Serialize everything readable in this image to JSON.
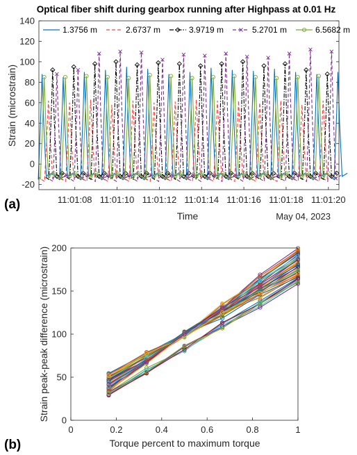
{
  "chart_data": [
    {
      "type": "line",
      "panel_label": "(a)",
      "title": "Optical fiber shift during gearbox running after Highpass at 0.01 Hz",
      "xlabel": "Time",
      "ylabel": "Strain (microstrain)",
      "date_label": "May 04, 2023",
      "x_ticks": [
        "11:01:08",
        "11:01:10",
        "11:01:12",
        "11:01:14",
        "11:01:16",
        "11:01:18",
        "11:01:20"
      ],
      "x_tick_values": [
        8,
        10,
        12,
        14,
        16,
        18,
        20
      ],
      "xlim": [
        6.3,
        20.5
      ],
      "ylim": [
        -25,
        140
      ],
      "y_ticks": [
        -20,
        0,
        20,
        40,
        60,
        80,
        100,
        120,
        140
      ],
      "legend_position": "top",
      "series": [
        {
          "name": "1.3756 m",
          "color": "#0072BD",
          "style": "solid",
          "marker": "none",
          "period": 1.0,
          "phase": 6.45,
          "peaks": [
            88,
            85,
            90,
            92,
            95,
            93,
            88,
            90,
            94,
            92,
            91,
            93,
            90,
            88,
            90
          ]
        },
        {
          "name": "2.6737 m",
          "color": "#FF4040",
          "style": "dashed",
          "marker": "none",
          "period": 1.0,
          "phase": 6.75,
          "peaks": [
            62,
            60,
            63,
            58,
            62,
            60,
            61,
            63,
            62,
            62,
            60,
            62,
            58,
            62,
            60
          ]
        },
        {
          "name": "3.9719 m",
          "color": "#000000",
          "style": "dashdot",
          "marker": "diamond",
          "period": 1.0,
          "phase": 6.95,
          "peaks": [
            92,
            95,
            98,
            100,
            97,
            99,
            98,
            96,
            98,
            100,
            96,
            98,
            92,
            88,
            84
          ]
        },
        {
          "name": "5.2701 m",
          "color": "#7E2F8E",
          "style": "dashed",
          "marker": "x",
          "period": 1.0,
          "phase": 7.15,
          "peaks": [
            88,
            92,
            108,
            110,
            109,
            102,
            107,
            106,
            108,
            105,
            104,
            108,
            112,
            110,
            104
          ]
        },
        {
          "name": "6.5682 m",
          "color": "#77AC30",
          "style": "solid",
          "marker": "circle",
          "period": 1.0,
          "phase": 6.55,
          "peaks": [
            85,
            85,
            86,
            85,
            84,
            87,
            86,
            84,
            85,
            86,
            85,
            84,
            85,
            86,
            84
          ]
        }
      ]
    },
    {
      "type": "line",
      "panel_label": "(b)",
      "xlabel": "Torque percent to maximum torque",
      "ylabel": "Strain peak-peak difference (microstrain)",
      "x": [
        0.1667,
        0.3333,
        0.5,
        0.6667,
        0.8333,
        1.0
      ],
      "xlim": [
        0,
        1
      ],
      "ylim": [
        0,
        200
      ],
      "x_ticks": [
        0,
        0.2,
        0.4,
        0.6,
        0.8,
        1
      ],
      "y_ticks": [
        0,
        50,
        100,
        150,
        200
      ],
      "marker": "circle",
      "series_count": 40,
      "y_start_range": [
        29,
        55
      ],
      "y_end_range": [
        158,
        200
      ],
      "colors": [
        "#0072BD",
        "#D95319",
        "#EDB120",
        "#7E2F8E",
        "#77AC30",
        "#4DBEEE",
        "#A2142F"
      ]
    }
  ]
}
